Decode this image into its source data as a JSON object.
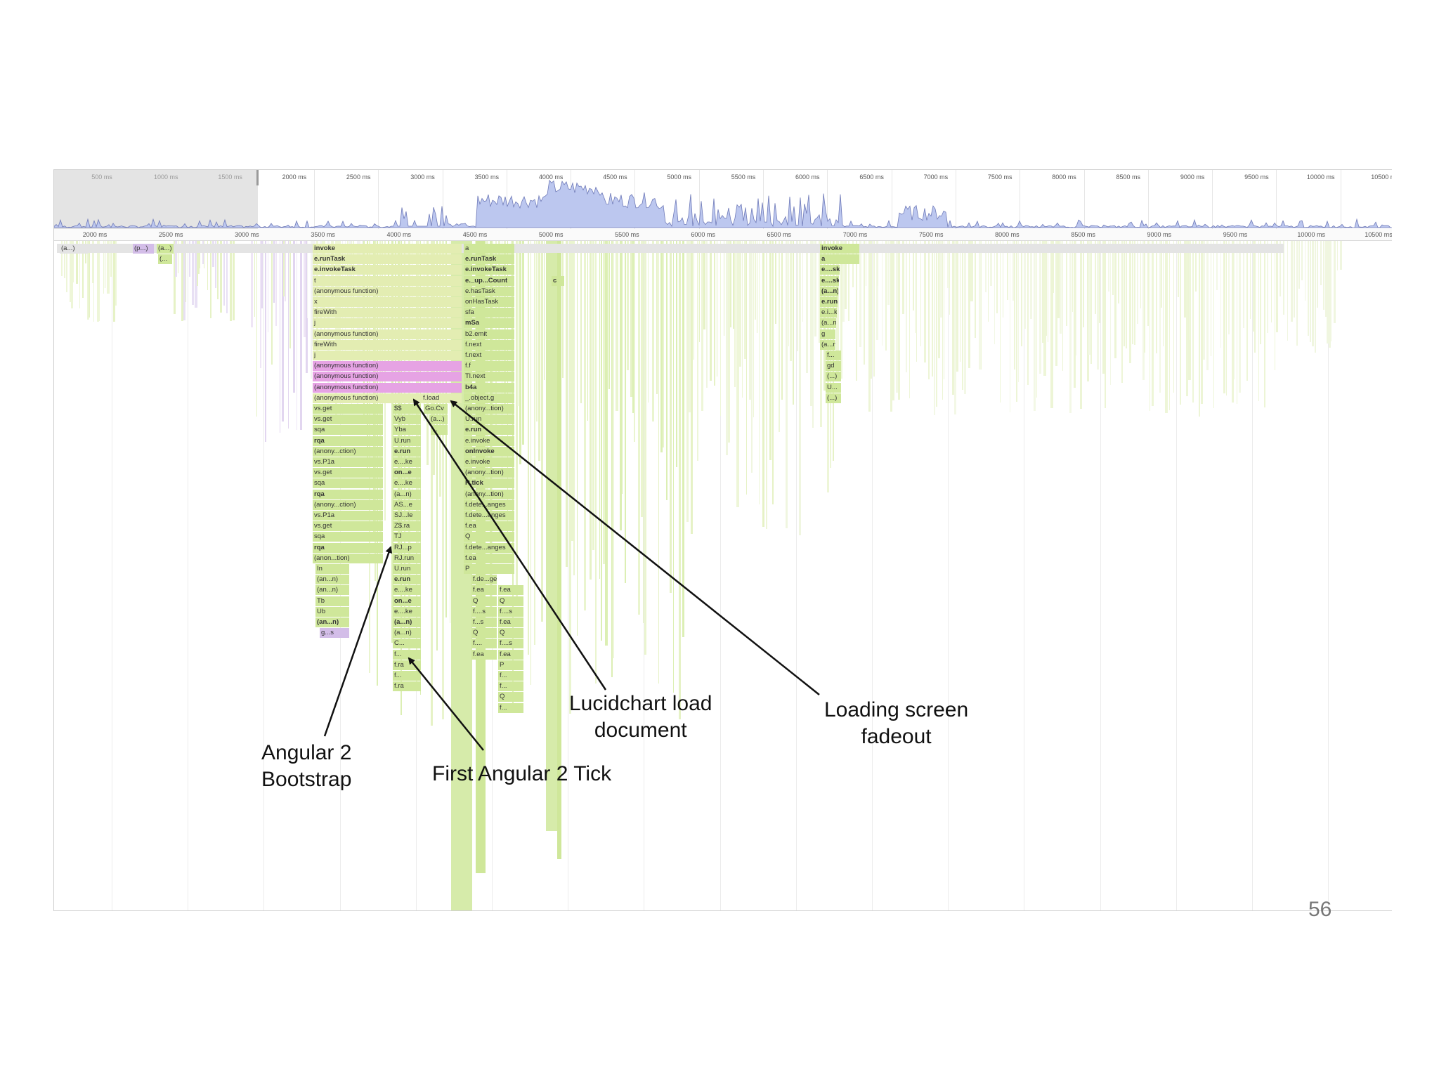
{
  "overview": {
    "ticks": [
      "500 ms",
      "1000 ms",
      "1500 ms",
      "2000 ms",
      "2500 ms",
      "3000 ms",
      "3500 ms",
      "4000 ms",
      "4500 ms",
      "5000 ms",
      "5500 ms",
      "6000 ms",
      "6500 ms",
      "7000 ms",
      "7500 ms",
      "8000 ms",
      "8500 ms",
      "9000 ms",
      "9500 ms",
      "10000 ms",
      "10500 ms"
    ],
    "fill_color": "#bcc7ef",
    "stroke_color": "#6f7ab8"
  },
  "ruler": {
    "ticks": [
      "2000 ms",
      "2500 ms",
      "3000 ms",
      "3500 ms",
      "4000 ms",
      "4500 ms",
      "5000 ms",
      "5500 ms",
      "6000 ms",
      "6500 ms",
      "7000 ms",
      "7500 ms",
      "8000 ms",
      "8500 ms",
      "9000 ms",
      "9500 ms",
      "10000 ms",
      "10500 ms"
    ]
  },
  "flame": {
    "left_top_labels": [
      "(a...)",
      "(p...)",
      "(a...)",
      "(..."
    ],
    "col_a": [
      "invoke",
      "e.runTask",
      "e.invokeTask",
      "t",
      "(anonymous function)",
      "x",
      "fireWith",
      "j",
      "(anonymous function)",
      "fireWith",
      "j",
      "(anonymous function)",
      "(anonymous function)",
      "(anonymous function)",
      "(anonymous function)",
      "vs.get",
      "vs.get",
      "sqa",
      "rqa",
      "(anony...ction)",
      "vs.P1a",
      "vs.get",
      "sqa",
      "rqa",
      "(anony...ction)",
      "vs.P1a",
      "vs.get",
      "sqa",
      "rqa",
      "(anon...tion)",
      "In",
      "(an...n)",
      "(an...n)",
      "Tb",
      "Ub",
      "(an...n)",
      "g...s"
    ],
    "col_b": [
      "$$",
      "Vyb",
      "Yba",
      "U.run",
      "e.run",
      "e....ke",
      "on...e",
      "e....ke",
      "(a...n)",
      "AS...e",
      "SJ...le",
      "Z$.ra",
      "TJ",
      "RJ...p",
      "RJ.run",
      "U.run",
      "e.run",
      "e....ke",
      "on...e",
      "e....ke",
      "(a...n)",
      "(a...n)",
      "C...",
      "f...",
      "f.ra",
      "f...",
      "f.ra"
    ],
    "col_c": [
      "f.load",
      "Go.Cv",
      "(a...)",
      "..."
    ],
    "col_d": [
      "a",
      "e.runTask",
      "e.invokeTask",
      "e._up...Count",
      "e.hasTask",
      "onHasTask",
      "sfa",
      "mSa",
      "b2.emit",
      "f.next",
      "f.next",
      "f.f",
      "Tl.next",
      "b4a",
      "_.object.g",
      "(anony...tion)",
      "U.run",
      "e.run",
      "e.invoke",
      "onInvoke",
      "e.invoke",
      "(anony...tion)",
      "R.tick",
      "(anony...tion)",
      "f.dete...anges",
      "f.dete...anges",
      "f.ea",
      "Q",
      "f.dete...anges",
      "f.ea",
      "P"
    ],
    "col_d_sub": [
      [
        "f.de...ges"
      ],
      [
        "f.ea",
        "f.ea"
      ],
      [
        "Q",
        "Q"
      ],
      [
        "f....s",
        "f....s"
      ],
      [
        "f...s",
        "f.ea"
      ],
      [
        "Q",
        "Q"
      ],
      [
        "f....",
        "f....s"
      ],
      [
        "f.ea",
        "f.ea"
      ],
      [
        "",
        "P"
      ],
      [
        "",
        "f..."
      ],
      [
        "",
        "f..."
      ],
      [
        "",
        "Q"
      ],
      [
        "",
        "f..."
      ]
    ],
    "col_e": [
      "c"
    ],
    "col_f": [
      "invoke",
      "a",
      "e....sk",
      "e....sk",
      "(a...n)",
      "e.run",
      "e.i...ke",
      "(a...n)",
      "g",
      "(a...n)",
      "f...",
      "gd",
      "(...)",
      "U...",
      "(...)"
    ]
  },
  "annotations": {
    "bootstrap": [
      "Angular 2",
      "Bootstrap"
    ],
    "tick": "First Angular 2 Tick",
    "lucid": [
      "Lucidchart load",
      "document"
    ],
    "fadeout": [
      "Loading screen",
      "fadeout"
    ]
  },
  "slide_number": "56"
}
